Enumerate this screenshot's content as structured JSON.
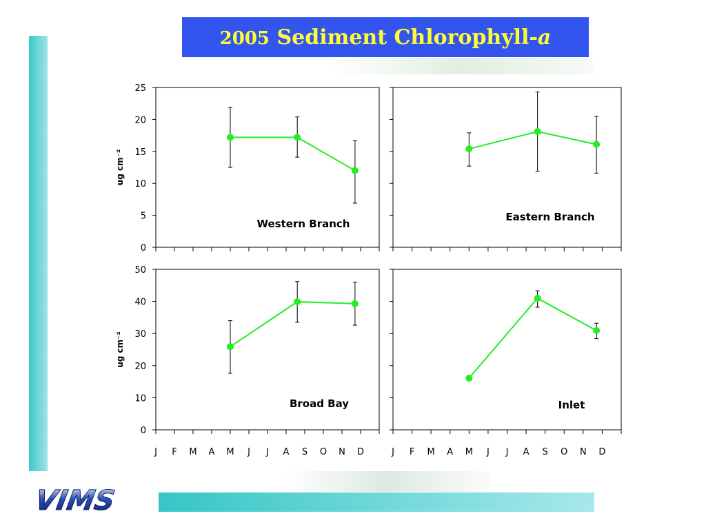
{
  "title": {
    "year": "2005",
    "main": " Sediment Chlorophyll-",
    "italic": "a"
  },
  "logo": {
    "text": "VIMS"
  },
  "colors": {
    "series": "#22ee22",
    "title_bg": "#3355ee",
    "title_text": "#ffff33",
    "accent": "#3cc9c9"
  },
  "chart_data": [
    {
      "type": "line",
      "panel_label": "Western Branch",
      "ylabel": "ug cm⁻²",
      "ylim": [
        0,
        25
      ],
      "yticks": [
        0,
        5,
        10,
        15,
        20,
        25
      ],
      "xticks": [
        "J",
        "F",
        "M",
        "A",
        "M",
        "J",
        "J",
        "A",
        "S",
        "O",
        "N",
        "D"
      ],
      "show_xtick_labels": false,
      "points": [
        {
          "x": 4.0,
          "y": 17.2,
          "err_low": 12.5,
          "err_high": 21.9
        },
        {
          "x": 7.6,
          "y": 17.2,
          "err_low": 14.1,
          "err_high": 20.4
        },
        {
          "x": 10.7,
          "y": 12.0,
          "err_low": 6.9,
          "err_high": 16.7
        }
      ]
    },
    {
      "type": "line",
      "panel_label": "Eastern Branch",
      "ylabel": "",
      "ylim": [
        0,
        25
      ],
      "yticks": [
        0,
        5,
        10,
        15,
        20,
        25
      ],
      "xticks": [
        "J",
        "F",
        "M",
        "A",
        "M",
        "J",
        "J",
        "A",
        "S",
        "O",
        "N",
        "D"
      ],
      "show_xtick_labels": false,
      "points": [
        {
          "x": 4.0,
          "y": 15.4,
          "err_low": 12.7,
          "err_high": 17.9
        },
        {
          "x": 7.6,
          "y": 18.1,
          "err_low": 11.9,
          "err_high": 24.3
        },
        {
          "x": 10.7,
          "y": 16.1,
          "err_low": 11.6,
          "err_high": 20.5
        }
      ]
    },
    {
      "type": "line",
      "panel_label": "Broad Bay",
      "ylabel": "ug cm⁻²",
      "ylim": [
        0,
        50
      ],
      "yticks": [
        0,
        10,
        20,
        30,
        40,
        50
      ],
      "xticks": [
        "J",
        "F",
        "M",
        "A",
        "M",
        "J",
        "J",
        "A",
        "S",
        "O",
        "N",
        "D"
      ],
      "show_xtick_labels": true,
      "points": [
        {
          "x": 4.0,
          "y": 25.9,
          "err_low": 17.6,
          "err_high": 34.0
        },
        {
          "x": 7.6,
          "y": 39.9,
          "err_low": 33.5,
          "err_high": 46.2
        },
        {
          "x": 10.7,
          "y": 39.3,
          "err_low": 32.6,
          "err_high": 46.0
        }
      ]
    },
    {
      "type": "line",
      "panel_label": "Inlet",
      "ylabel": "",
      "ylim": [
        0,
        50
      ],
      "yticks": [
        0,
        10,
        20,
        30,
        40,
        50
      ],
      "xticks": [
        "J",
        "F",
        "M",
        "A",
        "M",
        "J",
        "J",
        "A",
        "S",
        "O",
        "N",
        "D"
      ],
      "show_xtick_labels": true,
      "points": [
        {
          "x": 4.0,
          "y": 16.1,
          "err_low": 15.5,
          "err_high": 16.7
        },
        {
          "x": 7.6,
          "y": 41.0,
          "err_low": 38.2,
          "err_high": 43.3
        },
        {
          "x": 10.7,
          "y": 30.9,
          "err_low": 28.4,
          "err_high": 33.2
        }
      ]
    }
  ]
}
